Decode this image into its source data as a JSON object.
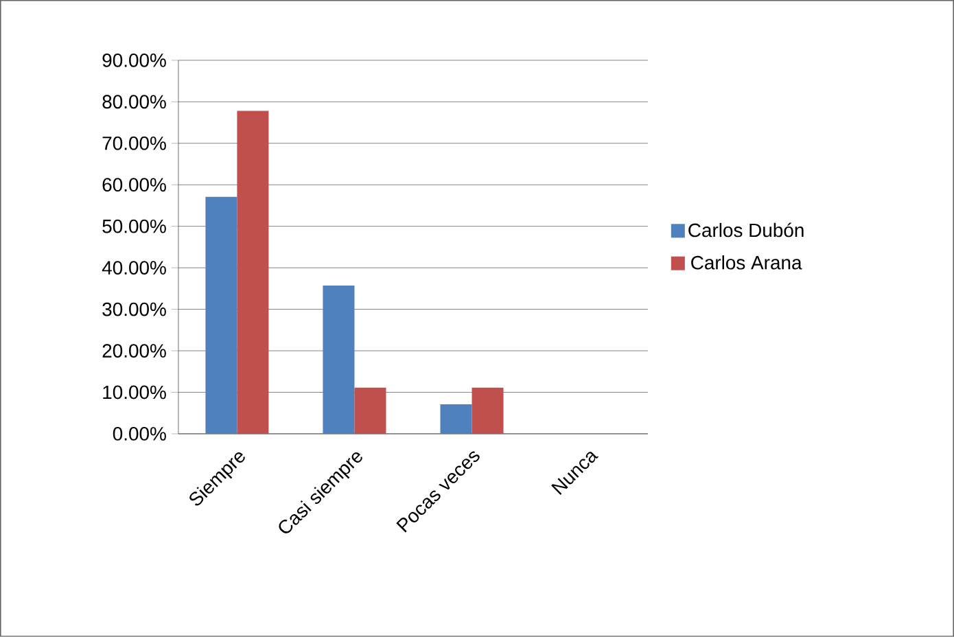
{
  "chart_data": {
    "type": "bar",
    "categories": [
      "Siempre",
      "Casi siempre",
      "Pocas veces",
      "Nunca"
    ],
    "series": [
      {
        "name": "Carlos Dubón",
        "color": "#4f81bd",
        "values": [
          57.1,
          35.7,
          7.1,
          0
        ]
      },
      {
        "name": "Carlos Arana",
        "color": "#c0504d",
        "values": [
          77.8,
          11.1,
          11.1,
          0
        ]
      }
    ],
    "ylim": [
      0,
      90
    ],
    "yticks": [
      {
        "value": 0,
        "label": "0.00%"
      },
      {
        "value": 10,
        "label": "10.00%"
      },
      {
        "value": 20,
        "label": "20.00%"
      },
      {
        "value": 30,
        "label": "30.00%"
      },
      {
        "value": 40,
        "label": "40.00%"
      },
      {
        "value": 50,
        "label": "50.00%"
      },
      {
        "value": 60,
        "label": "60.00%"
      },
      {
        "value": 70,
        "label": "70.00%"
      },
      {
        "value": 80,
        "label": "80.00%"
      },
      {
        "value": 90,
        "label": "90.00%"
      }
    ],
    "grid": "y",
    "legend": "right"
  }
}
